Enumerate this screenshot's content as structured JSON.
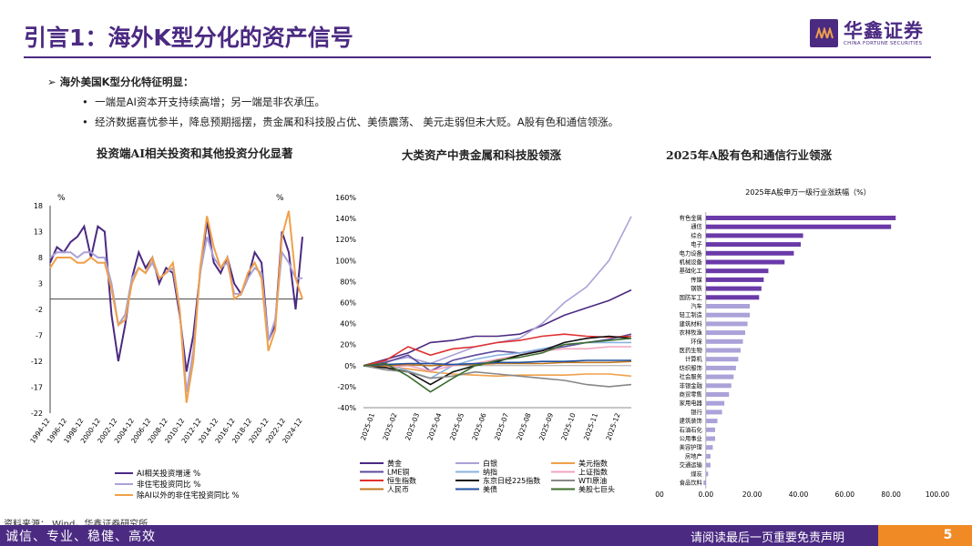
{
  "header": {
    "title": "引言1：海外K型分化的资产信号",
    "logo_cn": "华鑫证券",
    "logo_en": "CHINA FORTUNE SECURITIES"
  },
  "bullets": {
    "main": "海外美国K型分化特征明显：",
    "items": [
      "一端是AI资本开支持续高增；另一端是非农承压。",
      "经济数据喜忧参半，降息预期摇摆，贵金属和科技股占优、美债震荡、 美元走弱但未大贬。A股有色和通信领涨。"
    ]
  },
  "subtitles": [
    "投资端AI相关投资和其他投资分化显著",
    "大类资产中贵金属和科技股领涨",
    "2025年A股有色和通信行业领涨"
  ],
  "source": "资料来源： Wind，华鑫证券研究所",
  "footer": {
    "left": "诚信、专业、稳健、高效",
    "right": "请阅读最后一页重要免责声明",
    "page": "5"
  },
  "chart_data": [
    {
      "type": "line",
      "title": "投资端AI相关投资和其他投资分化显著",
      "ylabel_left": "%",
      "ylabel_right": "%",
      "ylim": [
        -22,
        18
      ],
      "yticks": [
        "18",
        "13",
        "8",
        "3",
        "-2",
        "-7",
        "-12",
        "-17",
        "-22"
      ],
      "x_labels": [
        "1994-12",
        "1996-12",
        "1998-12",
        "2000-12",
        "2002-12",
        "2004-12",
        "2006-12",
        "2008-12",
        "2010-12",
        "2012-12",
        "2014-12",
        "2016-12",
        "2018-12",
        "2020-12",
        "2022-12",
        "2024-12"
      ],
      "series": [
        {
          "name": "AI相关投资增速 %",
          "color": "#4b2a82",
          "values": [
            7,
            10,
            9,
            11,
            12,
            14,
            8,
            14,
            13,
            -3,
            -12,
            -5,
            4,
            9,
            6,
            8,
            3,
            6,
            5,
            -3,
            -14,
            -7,
            5,
            15,
            7,
            5,
            8,
            3,
            1,
            4,
            9,
            7,
            -8,
            -5,
            13,
            9,
            -2,
            12
          ]
        },
        {
          "name": "非住宅投资同比 %",
          "color": "#aaa2d8",
          "values": [
            8,
            9,
            9,
            9,
            8,
            9,
            9,
            8,
            8,
            3,
            -5,
            -3,
            4,
            6,
            5,
            7,
            4,
            5,
            6,
            -2,
            -18,
            -10,
            5,
            12,
            8,
            6,
            7,
            1,
            1,
            4,
            6,
            5,
            -8,
            -4,
            9,
            7,
            4,
            4
          ]
        },
        {
          "name": "除AI以外的非住宅投资同比 %",
          "color": "#f0a04a",
          "values": [
            6,
            8,
            8,
            8,
            7,
            7,
            8,
            7,
            7,
            2,
            -5,
            -4,
            3,
            6,
            5,
            8,
            4,
            5,
            7,
            -2,
            -20,
            -12,
            6,
            16,
            10,
            6,
            8,
            0,
            1,
            5,
            7,
            4,
            -10,
            -6,
            12,
            17,
            4,
            0
          ]
        }
      ]
    },
    {
      "type": "line",
      "title": "大类资产中贵金属和科技股领涨",
      "ylim": [
        -40,
        160
      ],
      "yticks": [
        "160%",
        "140%",
        "120%",
        "100%",
        "80%",
        "60%",
        "40%",
        "20%",
        "0%",
        "-20%",
        "-40%"
      ],
      "x_labels": [
        "2025-01",
        "2025-02",
        "2025-03",
        "2025-04",
        "2025-05",
        "2025-06",
        "2025-07",
        "2025-08",
        "2025-09",
        "2025-10",
        "2025-11",
        "2025-12"
      ],
      "series": [
        {
          "name": "黄金",
          "color": "#4b2a82",
          "values": [
            0,
            6,
            12,
            22,
            24,
            28,
            28,
            30,
            38,
            48,
            55,
            62,
            72
          ]
        },
        {
          "name": "白银",
          "color": "#aaa2d8",
          "values": [
            0,
            4,
            8,
            2,
            10,
            18,
            22,
            26,
            40,
            60,
            75,
            100,
            142
          ]
        },
        {
          "name": "美元指数",
          "color": "#f0a04a",
          "values": [
            0,
            -1,
            -3,
            -6,
            -8,
            -9,
            -10,
            -9,
            -9,
            -9,
            -8,
            -8,
            -10
          ]
        },
        {
          "name": "LME铜",
          "color": "#5e4a9c",
          "values": [
            0,
            3,
            10,
            -5,
            5,
            10,
            14,
            12,
            15,
            18,
            22,
            25,
            30
          ]
        },
        {
          "name": "纳指",
          "color": "#8ab3e0",
          "values": [
            0,
            2,
            -5,
            -12,
            0,
            6,
            10,
            12,
            16,
            20,
            22,
            22,
            22
          ]
        },
        {
          "name": "上证指数",
          "color": "#f2a3c0",
          "values": [
            0,
            -2,
            0,
            -5,
            0,
            2,
            6,
            10,
            14,
            16,
            16,
            18,
            18
          ]
        },
        {
          "name": "恒生指数",
          "color": "#e03030",
          "values": [
            0,
            5,
            18,
            10,
            16,
            18,
            22,
            24,
            28,
            30,
            28,
            27,
            28
          ]
        },
        {
          "name": "东京日经225指数",
          "color": "#111111",
          "values": [
            0,
            -2,
            -6,
            -18,
            -6,
            0,
            4,
            10,
            14,
            22,
            26,
            28,
            26
          ]
        },
        {
          "name": "WTI原油",
          "color": "#888888",
          "values": [
            0,
            -4,
            -6,
            -12,
            -10,
            -6,
            -8,
            -10,
            -12,
            -14,
            -18,
            -20,
            -18
          ]
        },
        {
          "name": "人民币",
          "color": "#c07820",
          "values": [
            0,
            0,
            1,
            0,
            1,
            1,
            2,
            2,
            2,
            3,
            3,
            3,
            4
          ]
        },
        {
          "name": "美债",
          "color": "#2050a0",
          "values": [
            0,
            1,
            2,
            2,
            1,
            2,
            3,
            3,
            4,
            4,
            5,
            5,
            5
          ]
        },
        {
          "name": "美股七巨头",
          "color": "#3c6e2e",
          "values": [
            0,
            2,
            -10,
            -25,
            -12,
            0,
            5,
            8,
            12,
            20,
            22,
            24,
            26
          ]
        }
      ]
    },
    {
      "type": "bar",
      "orientation": "horizontal",
      "title": "2025年A股申万一级行业涨跌幅（%）",
      "categories": [
        "有色金属",
        "通信",
        "综合",
        "电子",
        "电力设备",
        "机械设备",
        "基础化工",
        "传媒",
        "钢铁",
        "国防军工",
        "汽车",
        "轻工制造",
        "建筑材料",
        "农林牧渔",
        "环保",
        "医药生物",
        "计算机",
        "纺织服饰",
        "社会服务",
        "非银金融",
        "商贸零售",
        "家用电器",
        "银行",
        "建筑装饰",
        "石油石化",
        "公用事业",
        "美容护理",
        "房地产",
        "交通运输",
        "煤炭",
        "食品饮料"
      ],
      "values": [
        82,
        80,
        42,
        41,
        38,
        34,
        27,
        25,
        24,
        23,
        19,
        19,
        18,
        17,
        16,
        15,
        14,
        13,
        12,
        11,
        10,
        8,
        7,
        5,
        4,
        4,
        3,
        2,
        2,
        1,
        -1
      ],
      "xticks": [
        "00",
        "0.00",
        "20.00",
        "40.00",
        "60.00",
        "80.00",
        "100.00"
      ],
      "xlim": [
        -20,
        100
      ],
      "color": "#6a3aa8",
      "light_color": "#aaa2d8"
    }
  ]
}
